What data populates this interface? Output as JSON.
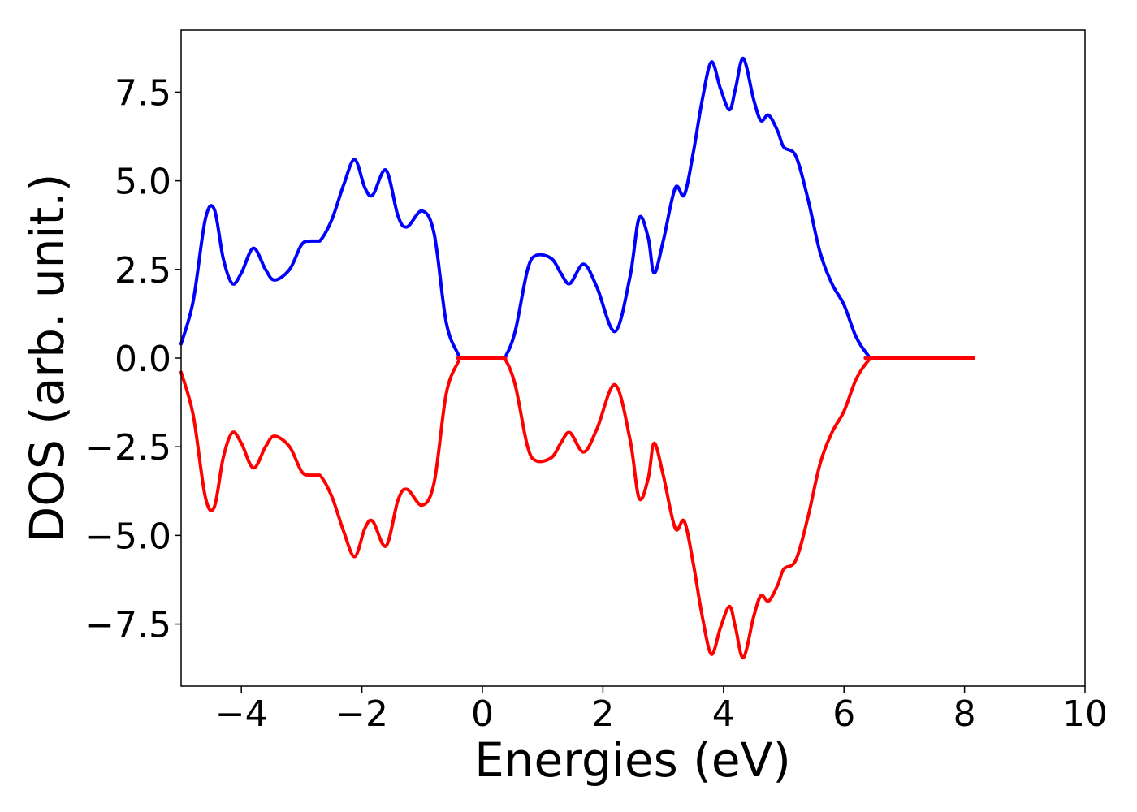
{
  "chart_data": {
    "type": "line",
    "title": "",
    "xlabel": "Energies (eV)",
    "ylabel": "DOS (arb. unit.)",
    "xlim": [
      -5,
      10
    ],
    "ylim": [
      -9.25,
      9.25
    ],
    "x_ticks": [
      -4,
      -2,
      0,
      2,
      4,
      6,
      8,
      10
    ],
    "x_tick_labels": [
      "−4",
      "−2",
      "0",
      "2",
      "4",
      "6",
      "8",
      "10"
    ],
    "y_ticks": [
      7.5,
      5.0,
      2.5,
      0.0,
      -2.5,
      -5.0,
      -7.5
    ],
    "y_tick_labels": [
      "7.5",
      "5.0",
      "2.5",
      "0.0",
      "−2.5",
      "−5.0",
      "−7.5"
    ],
    "grid": false,
    "legend": "none",
    "series": [
      {
        "color": "#0000ff",
        "x": [
          -5.0,
          -4.8,
          -4.6,
          -4.45,
          -4.3,
          -4.15,
          -4.0,
          -3.8,
          -3.6,
          -3.45,
          -3.2,
          -3.0,
          -2.85,
          -2.7,
          -2.5,
          -2.3,
          -2.12,
          -1.95,
          -1.82,
          -1.6,
          -1.4,
          -1.25,
          -1.0,
          -0.8,
          -0.6,
          -0.4,
          -0.35,
          0.3,
          0.4,
          0.55,
          0.75,
          0.9,
          1.15,
          1.3,
          1.45,
          1.68,
          1.9,
          2.2,
          2.45,
          2.6,
          2.75,
          2.85,
          3.0,
          3.2,
          3.35,
          3.5,
          3.65,
          3.8,
          3.95,
          4.1,
          4.2,
          4.33,
          4.5,
          4.62,
          4.75,
          4.9,
          5.0,
          5.2,
          5.4,
          5.6,
          5.8,
          6.0,
          6.2,
          6.4,
          6.5,
          8.15
        ],
        "y": [
          0.4,
          1.6,
          3.9,
          4.2,
          2.8,
          2.1,
          2.4,
          3.1,
          2.5,
          2.2,
          2.5,
          3.2,
          3.3,
          3.3,
          3.9,
          4.9,
          5.6,
          4.8,
          4.6,
          5.3,
          4.0,
          3.7,
          4.15,
          3.5,
          1.0,
          0.1,
          0.0,
          0.0,
          0.1,
          0.8,
          2.5,
          2.9,
          2.8,
          2.4,
          2.1,
          2.65,
          2.0,
          0.75,
          2.3,
          3.95,
          3.4,
          2.4,
          3.3,
          4.8,
          4.6,
          5.8,
          7.3,
          8.35,
          7.6,
          7.0,
          7.6,
          8.45,
          7.3,
          6.7,
          6.85,
          6.4,
          5.95,
          5.7,
          4.5,
          3.0,
          2.1,
          1.5,
          0.6,
          0.08,
          0.0,
          0.0
        ]
      },
      {
        "color": "#ff0000",
        "x": [
          -5.0,
          -4.8,
          -4.6,
          -4.45,
          -4.3,
          -4.15,
          -4.0,
          -3.8,
          -3.6,
          -3.45,
          -3.2,
          -3.0,
          -2.85,
          -2.7,
          -2.5,
          -2.3,
          -2.12,
          -1.95,
          -1.82,
          -1.6,
          -1.4,
          -1.25,
          -1.0,
          -0.8,
          -0.6,
          -0.4,
          -0.35,
          0.3,
          0.4,
          0.55,
          0.75,
          0.9,
          1.15,
          1.3,
          1.45,
          1.68,
          1.9,
          2.2,
          2.45,
          2.6,
          2.75,
          2.85,
          3.0,
          3.2,
          3.35,
          3.5,
          3.65,
          3.8,
          3.95,
          4.1,
          4.2,
          4.33,
          4.5,
          4.62,
          4.75,
          4.9,
          5.0,
          5.2,
          5.4,
          5.6,
          5.8,
          6.0,
          6.2,
          6.4,
          6.5,
          8.15
        ],
        "y": [
          -0.4,
          -1.6,
          -3.9,
          -4.2,
          -2.8,
          -2.1,
          -2.4,
          -3.1,
          -2.5,
          -2.2,
          -2.5,
          -3.2,
          -3.3,
          -3.3,
          -3.9,
          -4.9,
          -5.6,
          -4.8,
          -4.6,
          -5.3,
          -4.0,
          -3.7,
          -4.15,
          -3.5,
          -1.0,
          -0.1,
          0.0,
          0.0,
          -0.1,
          -0.8,
          -2.5,
          -2.9,
          -2.8,
          -2.4,
          -2.1,
          -2.65,
          -2.0,
          -0.75,
          -2.3,
          -3.95,
          -3.4,
          -2.4,
          -3.3,
          -4.8,
          -4.6,
          -5.8,
          -7.3,
          -8.35,
          -7.6,
          -7.0,
          -7.6,
          -8.45,
          -7.3,
          -6.7,
          -6.85,
          -6.4,
          -5.95,
          -5.7,
          -4.5,
          -3.0,
          -2.1,
          -1.5,
          -0.6,
          -0.08,
          0.0,
          0.0
        ]
      }
    ]
  }
}
